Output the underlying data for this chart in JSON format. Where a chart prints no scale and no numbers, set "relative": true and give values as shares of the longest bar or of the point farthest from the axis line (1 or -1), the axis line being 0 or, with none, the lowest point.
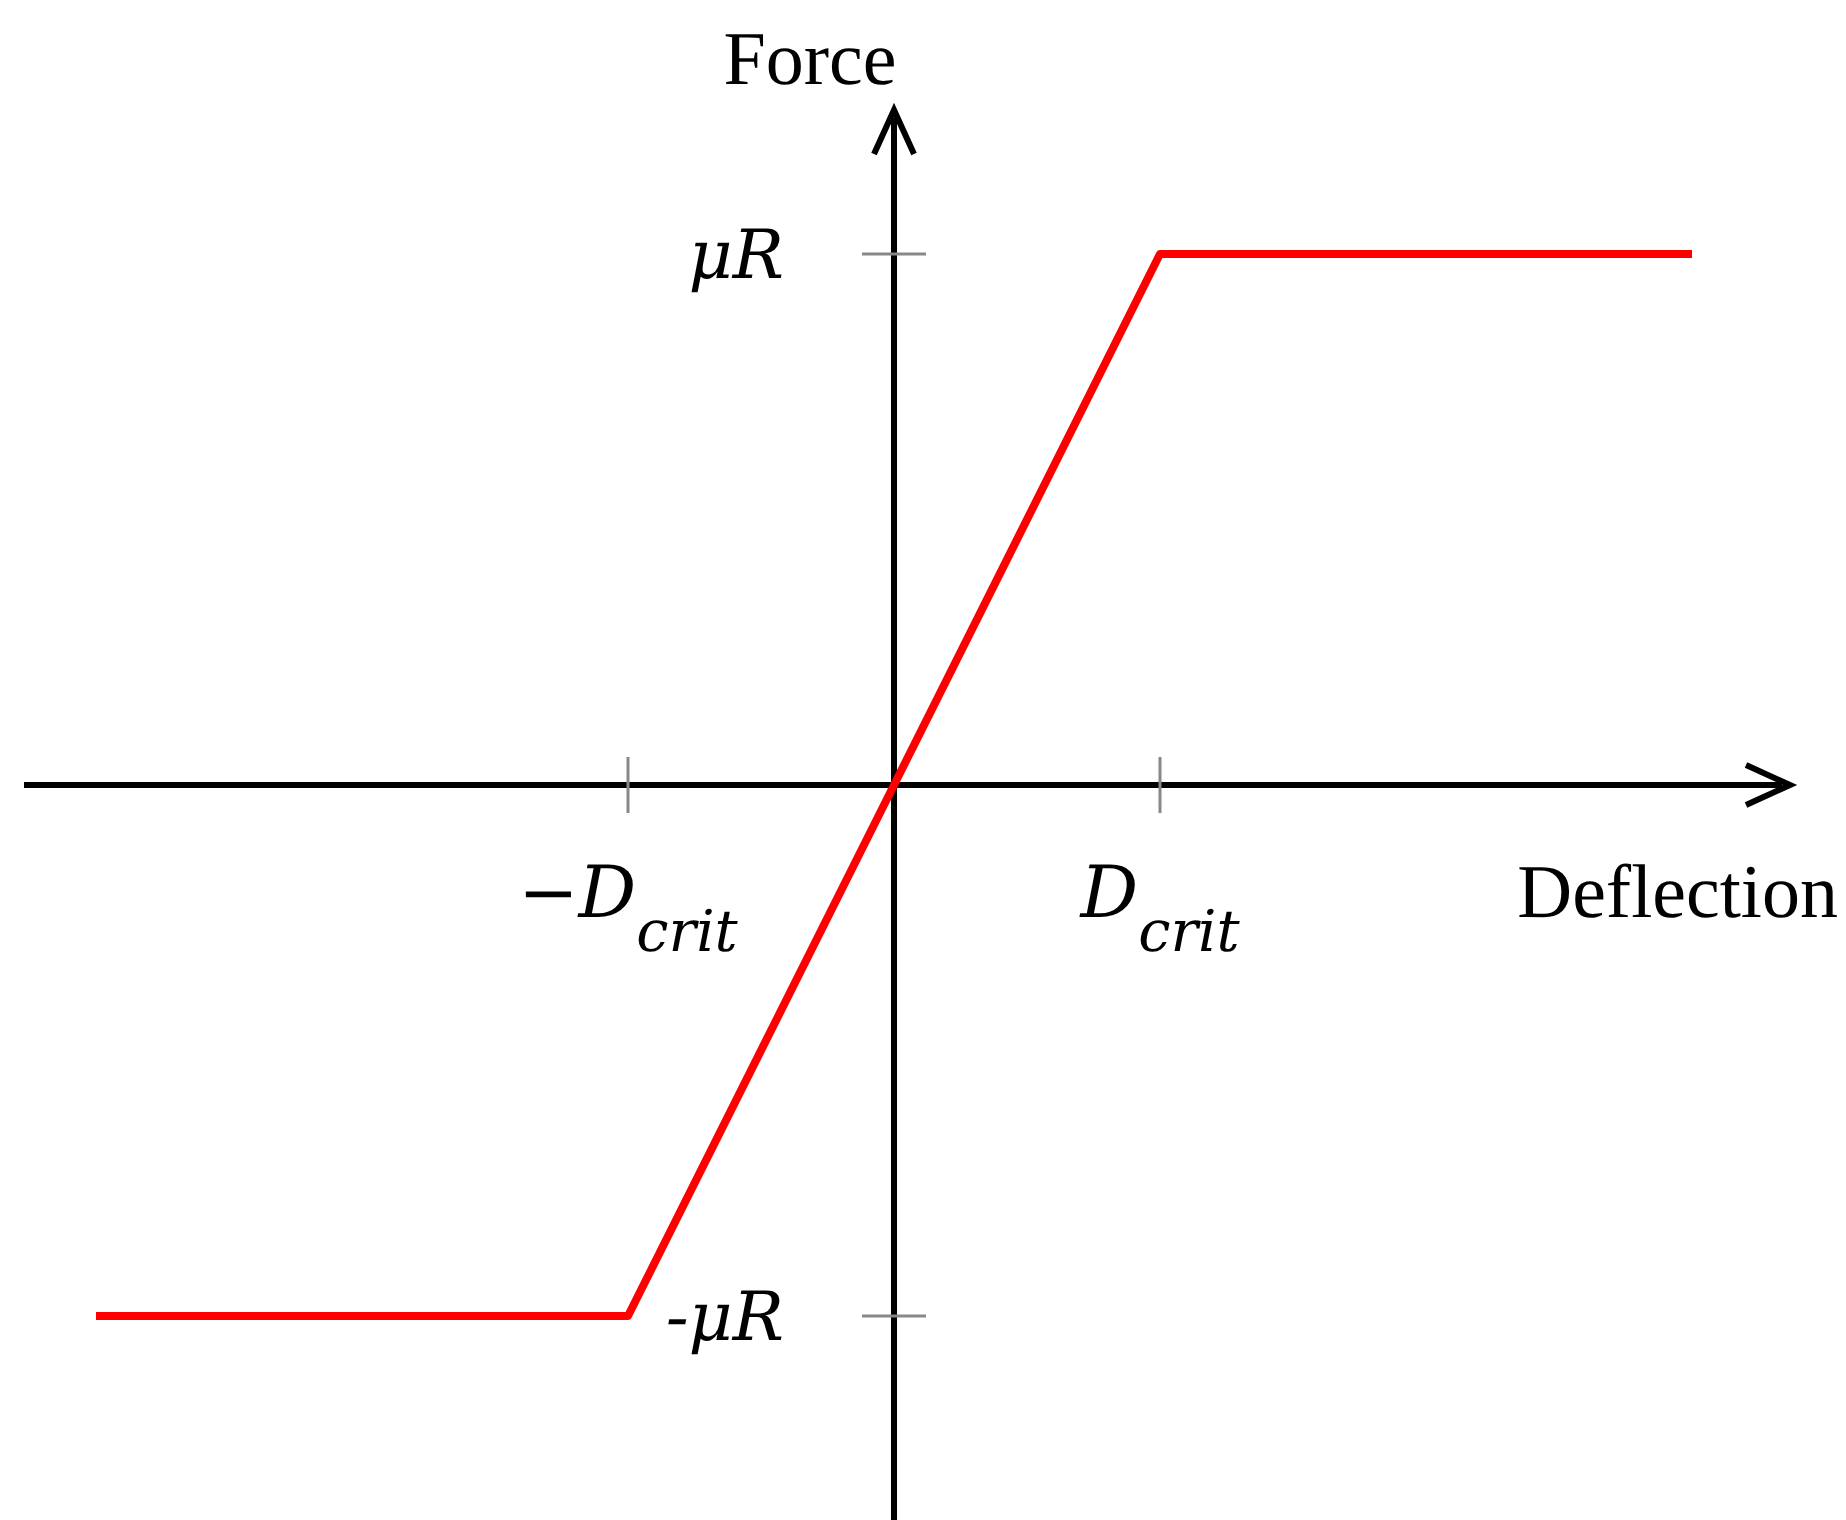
{
  "chart_data": {
    "type": "line",
    "relative": true,
    "xlabel": "Deflection",
    "ylabel": "Force",
    "categories": [
      null,
      null,
      "−D$_{crit}$",
      null,
      "D$_{crit}$",
      null,
      null
    ],
    "series": [
      {
        "color": "#ff0000",
        "values": [
          -1,
          -1,
          -1,
          0,
          1,
          1,
          1
        ]
      }
    ],
    "annotations": [
      "μR",
      "-μR"
    ],
    "marker": "none",
    "line_style": "solid"
  }
}
